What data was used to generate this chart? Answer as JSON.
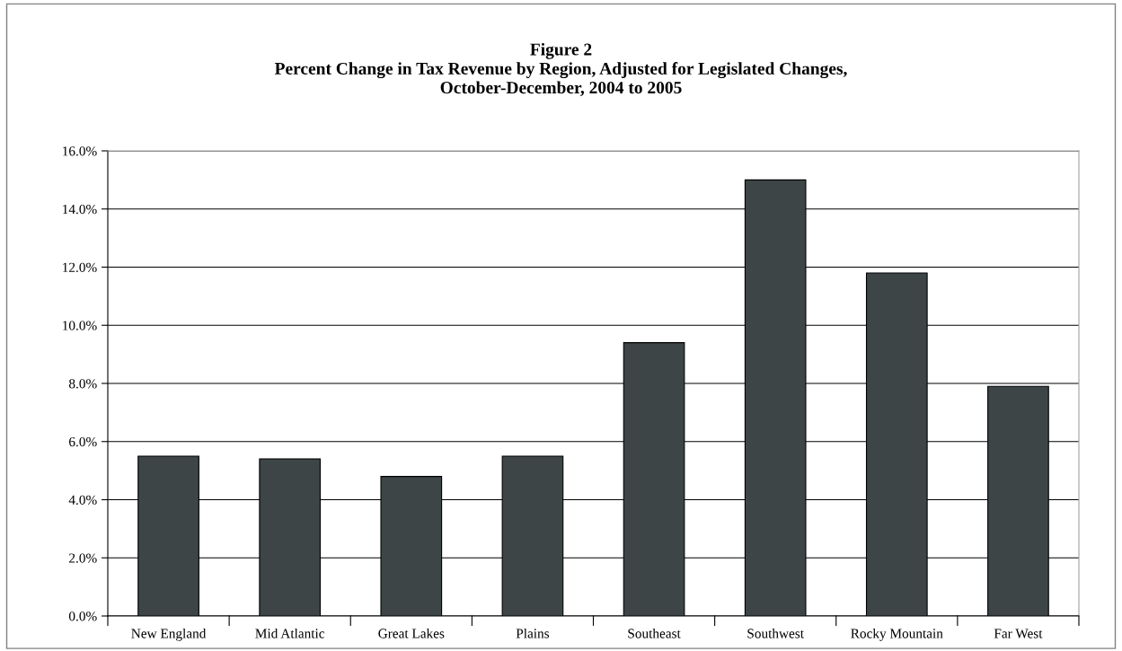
{
  "chart_data": {
    "type": "bar",
    "title": "Figure 2\nPercent Change in Tax Revenue by Region, Adjusted for Legislated Changes,\nOctober-December, 2004 to 2005",
    "categories": [
      "New England",
      "Mid Atlantic",
      "Great Lakes",
      "Plains",
      "Southeast",
      "Southwest",
      "Rocky Mountain",
      "Far West"
    ],
    "values": [
      5.5,
      5.4,
      4.8,
      5.5,
      9.4,
      15.0,
      11.8,
      7.9
    ],
    "color": "#3d4547",
    "ylim": [
      0,
      16
    ],
    "yticks": [
      {
        "value": 0,
        "label": "0.0%"
      },
      {
        "value": 2,
        "label": "2.0%"
      },
      {
        "value": 4,
        "label": "4.0%"
      },
      {
        "value": 6,
        "label": "6.0%"
      },
      {
        "value": 8,
        "label": "8.0%"
      },
      {
        "value": 10,
        "label": "10.0%"
      },
      {
        "value": 12,
        "label": "12.0%"
      },
      {
        "value": 14,
        "label": "14.0%"
      },
      {
        "value": 16,
        "label": "16.0%"
      }
    ],
    "grid": "y"
  }
}
